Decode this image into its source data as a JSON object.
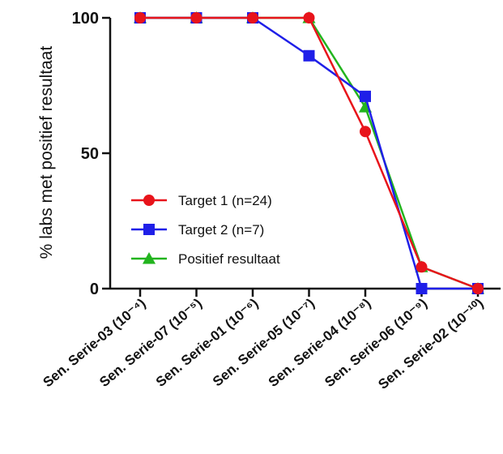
{
  "chart_data": {
    "type": "line",
    "title": "",
    "xlabel": "",
    "ylabel": "% labs met positief resultaat",
    "ylim": [
      0,
      100
    ],
    "yticks": [
      "0",
      "50",
      "100"
    ],
    "categories": [
      "Sen. Serie-03 (10⁻⁴)",
      "Sen. Serie-07 (10⁻⁵)",
      "Sen. Serie-01 (10⁻⁶)",
      "Sen. Serie-05 (10⁻⁷)",
      "Sen. Serie-04 (10⁻⁸)",
      "Sen. Serie-06 (10⁻⁹)",
      "Sen. Serie-02 (10⁻¹⁰)"
    ],
    "grid": false,
    "legend_position": "center-left",
    "series": [
      {
        "name": "Target 1 (n=24)",
        "color": "#e8141b",
        "marker": "circle",
        "values": [
          100,
          100,
          100,
          100,
          58,
          8,
          0
        ]
      },
      {
        "name": "Target 2 (n=7)",
        "color": "#1f1fe8",
        "marker": "square",
        "values": [
          100,
          100,
          100,
          86,
          71,
          0,
          0
        ]
      },
      {
        "name": "Positief resultaat",
        "color": "#22b41e",
        "marker": "triangle",
        "values": [
          100,
          100,
          100,
          100,
          67,
          8,
          0
        ]
      }
    ]
  }
}
